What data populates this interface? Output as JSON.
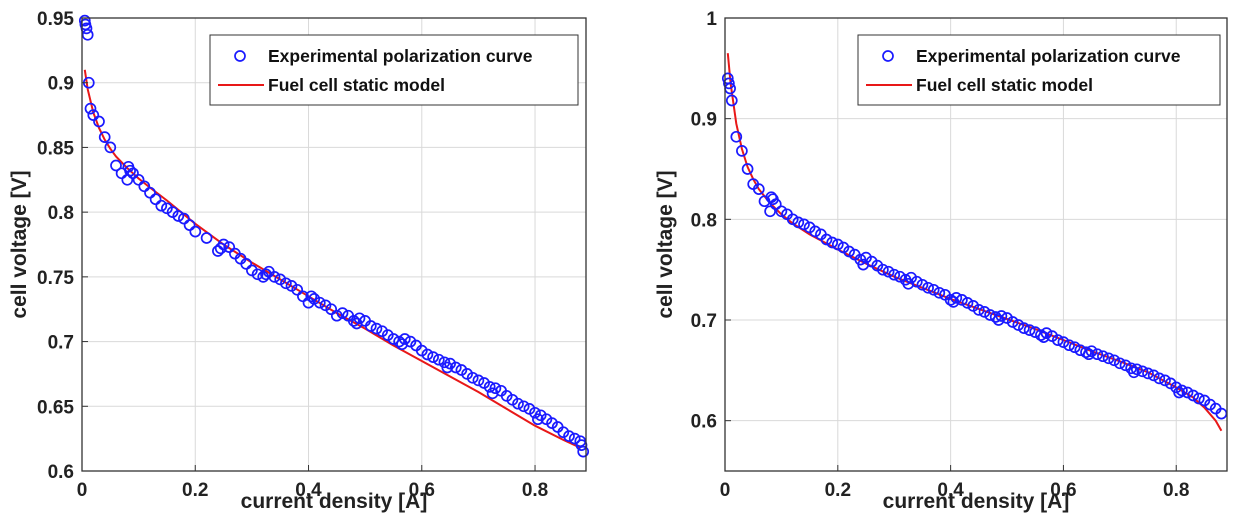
{
  "chart_data": [
    {
      "type": "scatter",
      "xlabel": "current density [A]",
      "ylabel": "cell voltage [V]",
      "xlim": [
        0,
        0.89
      ],
      "ylim": [
        0.6,
        0.95
      ],
      "xticks": [
        0,
        0.2,
        0.4,
        0.6,
        0.8
      ],
      "xtick_labels": [
        "0",
        "0.2",
        "0.4",
        "0.6",
        "0.8"
      ],
      "yticks": [
        0.6,
        0.65,
        0.7,
        0.75,
        0.8,
        0.85,
        0.9,
        0.95
      ],
      "ytick_labels": [
        "0.6",
        "0.65",
        "0.7",
        "0.75",
        "0.8",
        "0.85",
        "0.9",
        "0.95"
      ],
      "grid": true,
      "legend_position": "top-right",
      "colors": {
        "markers": "#1a1aff",
        "line": "#e81818"
      },
      "series": [
        {
          "name": "Experimental polarization curve",
          "kind": "markers",
          "x": [
            0.005,
            0.006,
            0.008,
            0.01,
            0.012,
            0.015,
            0.02,
            0.03,
            0.04,
            0.05,
            0.06,
            0.07,
            0.08,
            0.082,
            0.085,
            0.09,
            0.1,
            0.11,
            0.12,
            0.13,
            0.14,
            0.15,
            0.16,
            0.17,
            0.18,
            0.19,
            0.2,
            0.22,
            0.24,
            0.245,
            0.25,
            0.26,
            0.27,
            0.28,
            0.29,
            0.3,
            0.31,
            0.32,
            0.325,
            0.33,
            0.34,
            0.35,
            0.36,
            0.37,
            0.38,
            0.39,
            0.4,
            0.405,
            0.41,
            0.42,
            0.43,
            0.44,
            0.45,
            0.46,
            0.47,
            0.48,
            0.485,
            0.49,
            0.5,
            0.51,
            0.52,
            0.53,
            0.54,
            0.55,
            0.56,
            0.565,
            0.57,
            0.58,
            0.59,
            0.6,
            0.61,
            0.62,
            0.63,
            0.64,
            0.645,
            0.65,
            0.66,
            0.67,
            0.68,
            0.69,
            0.7,
            0.71,
            0.72,
            0.725,
            0.73,
            0.74,
            0.75,
            0.76,
            0.77,
            0.78,
            0.79,
            0.8,
            0.805,
            0.81,
            0.82,
            0.83,
            0.84,
            0.85,
            0.86,
            0.87,
            0.88,
            0.882,
            0.885
          ],
          "y": [
            0.948,
            0.945,
            0.942,
            0.937,
            0.9,
            0.88,
            0.875,
            0.87,
            0.858,
            0.85,
            0.836,
            0.83,
            0.825,
            0.835,
            0.832,
            0.83,
            0.825,
            0.82,
            0.815,
            0.81,
            0.805,
            0.803,
            0.8,
            0.797,
            0.795,
            0.79,
            0.785,
            0.78,
            0.77,
            0.772,
            0.775,
            0.773,
            0.768,
            0.764,
            0.76,
            0.755,
            0.752,
            0.75,
            0.752,
            0.754,
            0.75,
            0.748,
            0.745,
            0.743,
            0.74,
            0.735,
            0.73,
            0.735,
            0.733,
            0.73,
            0.728,
            0.725,
            0.72,
            0.722,
            0.72,
            0.716,
            0.714,
            0.718,
            0.716,
            0.712,
            0.71,
            0.708,
            0.705,
            0.702,
            0.7,
            0.698,
            0.702,
            0.7,
            0.697,
            0.693,
            0.69,
            0.688,
            0.686,
            0.684,
            0.68,
            0.683,
            0.68,
            0.678,
            0.675,
            0.672,
            0.67,
            0.668,
            0.665,
            0.66,
            0.664,
            0.662,
            0.658,
            0.655,
            0.652,
            0.65,
            0.648,
            0.645,
            0.64,
            0.643,
            0.64,
            0.637,
            0.634,
            0.63,
            0.627,
            0.625,
            0.623,
            0.62,
            0.615
          ]
        },
        {
          "name": "Fuel cell static model",
          "kind": "line",
          "x": [
            0.005,
            0.01,
            0.02,
            0.03,
            0.04,
            0.05,
            0.06,
            0.08,
            0.1,
            0.12,
            0.15,
            0.2,
            0.25,
            0.3,
            0.35,
            0.4,
            0.45,
            0.5,
            0.55,
            0.6,
            0.65,
            0.7,
            0.75,
            0.8,
            0.85,
            0.88
          ],
          "y": [
            0.91,
            0.895,
            0.877,
            0.865,
            0.856,
            0.849,
            0.843,
            0.834,
            0.826,
            0.819,
            0.809,
            0.791,
            0.775,
            0.761,
            0.748,
            0.735,
            0.722,
            0.71,
            0.697,
            0.685,
            0.673,
            0.661,
            0.648,
            0.635,
            0.624,
            0.618
          ]
        }
      ]
    },
    {
      "type": "scatter",
      "xlabel": "current density [A]",
      "ylabel": "cell voltage [V]",
      "xlim": [
        0,
        0.89
      ],
      "ylim": [
        0.55,
        1.0
      ],
      "xticks": [
        0,
        0.2,
        0.4,
        0.6,
        0.8
      ],
      "xtick_labels": [
        "0",
        "0.2",
        "0.4",
        "0.6",
        "0.8"
      ],
      "yticks": [
        0.6,
        0.7,
        0.8,
        0.9,
        1.0
      ],
      "ytick_labels": [
        "0.6",
        "0.7",
        "0.8",
        "0.9",
        "1"
      ],
      "grid": true,
      "legend_position": "top-right",
      "colors": {
        "markers": "#1a1aff",
        "line": "#e81818"
      },
      "series": [
        {
          "name": "Experimental polarization curve",
          "kind": "markers",
          "x": [
            0.005,
            0.007,
            0.009,
            0.012,
            0.02,
            0.03,
            0.04,
            0.05,
            0.06,
            0.07,
            0.08,
            0.082,
            0.085,
            0.09,
            0.1,
            0.11,
            0.12,
            0.13,
            0.14,
            0.15,
            0.16,
            0.17,
            0.18,
            0.19,
            0.2,
            0.21,
            0.22,
            0.23,
            0.24,
            0.245,
            0.25,
            0.26,
            0.27,
            0.28,
            0.29,
            0.3,
            0.31,
            0.32,
            0.325,
            0.33,
            0.34,
            0.35,
            0.36,
            0.37,
            0.38,
            0.39,
            0.4,
            0.405,
            0.41,
            0.42,
            0.43,
            0.44,
            0.45,
            0.46,
            0.47,
            0.48,
            0.485,
            0.49,
            0.5,
            0.51,
            0.52,
            0.53,
            0.54,
            0.55,
            0.56,
            0.565,
            0.57,
            0.58,
            0.59,
            0.6,
            0.61,
            0.62,
            0.63,
            0.64,
            0.645,
            0.65,
            0.66,
            0.67,
            0.68,
            0.69,
            0.7,
            0.71,
            0.72,
            0.725,
            0.73,
            0.74,
            0.75,
            0.76,
            0.77,
            0.78,
            0.79,
            0.8,
            0.805,
            0.81,
            0.82,
            0.83,
            0.84,
            0.85,
            0.86,
            0.87,
            0.88
          ],
          "y": [
            0.94,
            0.935,
            0.93,
            0.918,
            0.882,
            0.868,
            0.85,
            0.835,
            0.83,
            0.818,
            0.808,
            0.822,
            0.82,
            0.815,
            0.808,
            0.805,
            0.8,
            0.797,
            0.795,
            0.792,
            0.788,
            0.785,
            0.78,
            0.777,
            0.775,
            0.772,
            0.768,
            0.765,
            0.76,
            0.755,
            0.762,
            0.758,
            0.754,
            0.75,
            0.748,
            0.745,
            0.743,
            0.74,
            0.736,
            0.742,
            0.738,
            0.735,
            0.732,
            0.73,
            0.727,
            0.725,
            0.72,
            0.718,
            0.722,
            0.72,
            0.717,
            0.714,
            0.71,
            0.708,
            0.705,
            0.703,
            0.7,
            0.704,
            0.702,
            0.698,
            0.695,
            0.692,
            0.69,
            0.688,
            0.685,
            0.683,
            0.687,
            0.684,
            0.68,
            0.678,
            0.675,
            0.673,
            0.67,
            0.668,
            0.666,
            0.669,
            0.666,
            0.664,
            0.662,
            0.66,
            0.657,
            0.655,
            0.652,
            0.648,
            0.651,
            0.649,
            0.647,
            0.645,
            0.642,
            0.64,
            0.637,
            0.633,
            0.628,
            0.63,
            0.628,
            0.625,
            0.622,
            0.62,
            0.616,
            0.612,
            0.607
          ]
        },
        {
          "name": "Fuel cell static model",
          "kind": "line",
          "x": [
            0.005,
            0.01,
            0.02,
            0.03,
            0.04,
            0.05,
            0.06,
            0.08,
            0.1,
            0.12,
            0.15,
            0.2,
            0.25,
            0.3,
            0.35,
            0.4,
            0.45,
            0.5,
            0.55,
            0.6,
            0.65,
            0.7,
            0.75,
            0.8,
            0.83,
            0.85,
            0.87,
            0.88
          ],
          "y": [
            0.965,
            0.935,
            0.895,
            0.87,
            0.852,
            0.84,
            0.83,
            0.816,
            0.805,
            0.796,
            0.785,
            0.77,
            0.756,
            0.743,
            0.732,
            0.721,
            0.711,
            0.701,
            0.691,
            0.68,
            0.669,
            0.659,
            0.648,
            0.633,
            0.623,
            0.613,
            0.6,
            0.59
          ]
        }
      ]
    }
  ]
}
